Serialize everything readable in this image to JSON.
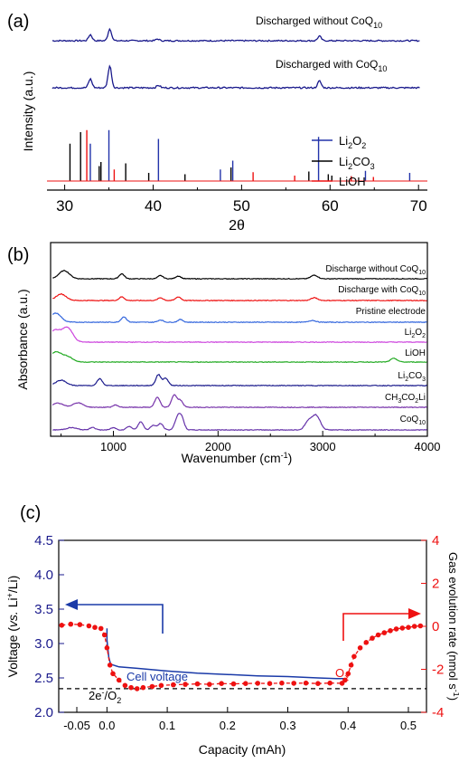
{
  "chart_data": [
    {
      "panel": "(a)",
      "type": "line",
      "xlabel": "2θ",
      "ylabel": "Intensity (a.u.)",
      "xlim": [
        28,
        71
      ],
      "xticks": [
        30,
        40,
        50,
        60,
        70
      ],
      "grid": false,
      "legend_position": "right",
      "series": [
        {
          "name": "Discharged without CoQ10",
          "label_main": "Discharged without CoQ",
          "label_sub": "10",
          "color": "#1a1a8c",
          "baseline": 0,
          "noise": 0.35,
          "peaks": [
            [
              32.9,
              3.2
            ],
            [
              35.1,
              6.2
            ],
            [
              40.5,
              0.9
            ],
            [
              58.8,
              2.4
            ]
          ]
        },
        {
          "name": "Discharged with CoQ10",
          "label_main": "Discharged with CoQ",
          "label_sub": "10",
          "color": "#1a1a8c",
          "baseline": 0,
          "noise": 0.4,
          "peaks": [
            [
              32.9,
              4.6
            ],
            [
              35.1,
              11.5
            ],
            [
              40.6,
              1.3
            ],
            [
              58.8,
              3.6
            ]
          ]
        }
      ],
      "references": [
        {
          "name": "Li2O2",
          "label_main": "Li",
          "label_sub": "2",
          "label_tail": "O",
          "label_sub2": "2",
          "color": "#2233aa",
          "lines": [
            [
              32.9,
              0.55
            ],
            [
              35.0,
              0.75
            ],
            [
              40.6,
              0.62
            ],
            [
              47.6,
              0.17
            ],
            [
              49.0,
              0.3
            ],
            [
              58.7,
              0.65
            ],
            [
              64.0,
              0.15
            ],
            [
              69.0,
              0.12
            ]
          ]
        },
        {
          "name": "Li2CO3",
          "label_main": "Li",
          "label_sub": "2",
          "label_tail": "CO",
          "label_sub2": "3",
          "color": "#000000",
          "lines": [
            [
              30.6,
              0.55
            ],
            [
              31.8,
              0.72
            ],
            [
              33.9,
              0.22
            ],
            [
              34.1,
              0.28
            ],
            [
              36.9,
              0.26
            ],
            [
              39.5,
              0.12
            ],
            [
              43.6,
              0.1
            ],
            [
              48.8,
              0.2
            ],
            [
              57.6,
              0.14
            ],
            [
              59.8,
              0.1
            ],
            [
              60.2,
              0.08
            ],
            [
              62.4,
              0.07
            ]
          ]
        },
        {
          "name": "LiOH",
          "label_main": "LiOH",
          "color": "#ee1111",
          "lines": [
            [
              32.5,
              0.75
            ],
            [
              35.6,
              0.17
            ],
            [
              51.3,
              0.13
            ],
            [
              56.0,
              0.08
            ],
            [
              62.4,
              0.07
            ],
            [
              64.9,
              0.06
            ]
          ]
        }
      ]
    },
    {
      "panel": "(b)",
      "type": "line",
      "xlabel": "Wavenumber (cm",
      "xlabel_sup": "-1",
      "xlabel_tail": ")",
      "ylabel": "Absorbance (a.u.)",
      "xlim": [
        400,
        4000
      ],
      "xticks": [
        1000,
        2000,
        3000,
        4000
      ],
      "grid": false,
      "series": [
        {
          "name": "Discharge without CoQ10",
          "label_main": "Discharge without CoQ",
          "label_sub": "10",
          "color": "#000000",
          "peaks": [
            [
              530,
              1.8
            ],
            [
              1080,
              1.1
            ],
            [
              1450,
              0.7
            ],
            [
              1620,
              0.6
            ],
            [
              2920,
              0.8
            ]
          ]
        },
        {
          "name": "Discharge with CoQ10",
          "label_main": "Discharge with CoQ",
          "label_sub": "10",
          "color": "#ee1111",
          "peaks": [
            [
              500,
              1.4
            ],
            [
              1080,
              0.8
            ],
            [
              1450,
              0.6
            ],
            [
              1620,
              0.8
            ],
            [
              2920,
              0.6
            ]
          ]
        },
        {
          "name": "Pristine electrode",
          "label_main": "Pristine electrode",
          "color": "#3366dd",
          "peaks": [
            [
              450,
              2.0
            ],
            [
              1100,
              1.2
            ],
            [
              1450,
              0.5
            ],
            [
              1640,
              0.6
            ],
            [
              2900,
              0.4
            ]
          ]
        },
        {
          "name": "Li2O2",
          "label_main": "Li",
          "label_sub": "2",
          "label_tail": "O",
          "label_sub2": "2",
          "color": "#cc44dd",
          "peaks": [
            [
              440,
              2.6
            ],
            [
              560,
              3.2
            ]
          ]
        },
        {
          "name": "LiOH",
          "label_main": "LiOH",
          "color": "#22aa22",
          "peaks": [
            [
              450,
              2.2
            ],
            [
              560,
              1.2
            ],
            [
              3680,
              0.8
            ]
          ]
        },
        {
          "name": "Li2CO3",
          "label_main": "Li",
          "label_sub": "2",
          "label_tail": "CO",
          "label_sub2": "3",
          "color": "#1a1a8c",
          "peaks": [
            [
              500,
              1.2
            ],
            [
              870,
              1.5
            ],
            [
              1430,
              2.4
            ],
            [
              1500,
              1.6
            ]
          ]
        },
        {
          "name": "CH3CO2Li",
          "label_main": "CH",
          "label_sub": "3",
          "label_tail": "CO",
          "label_sub2": "2",
          "label_tail2": "Li",
          "color": "#7733aa",
          "peaks": [
            [
              470,
              0.9
            ],
            [
              660,
              1.0
            ],
            [
              1020,
              0.5
            ],
            [
              1420,
              2.2
            ],
            [
              1580,
              2.7
            ],
            [
              1640,
              1.5
            ]
          ]
        },
        {
          "name": "CoQ10",
          "label_main": "CoQ",
          "label_sub": "10",
          "color": "#6633aa",
          "peaks": [
            [
              600,
              0.5
            ],
            [
              800,
              0.6
            ],
            [
              1000,
              0.5
            ],
            [
              1150,
              0.8
            ],
            [
              1260,
              1.8
            ],
            [
              1380,
              1.0
            ],
            [
              1450,
              1.4
            ],
            [
              1610,
              2.4
            ],
            [
              1650,
              2.7
            ],
            [
              2860,
              1.8
            ],
            [
              2920,
              2.3
            ],
            [
              2960,
              1.6
            ]
          ]
        }
      ]
    },
    {
      "panel": "(c)",
      "type": "line",
      "xlabel": "Capacity (mAh)",
      "xlim": [
        -0.08,
        0.53
      ],
      "xticks": [
        -0.05,
        0.0,
        0.1,
        0.2,
        0.3,
        0.4,
        0.5
      ],
      "xtick_labels": [
        "-0.05",
        "0.0",
        "0.1",
        "0.2",
        "0.3",
        "0.4",
        "0.5"
      ],
      "ylabel_left": "Voltage (vs. Li+/Li)",
      "ylabel_left_parts": [
        "Voltage (",
        "vs.",
        " Li",
        "+",
        "/Li)"
      ],
      "ylim_left": [
        2.0,
        4.5
      ],
      "yticks_left": [
        2.0,
        2.5,
        3.0,
        3.5,
        4.0,
        4.5
      ],
      "ytick_labels_left": [
        "2.0",
        "2.5",
        "3.0",
        "3.5",
        "4.0",
        "4.5"
      ],
      "ylabel_right": "Gas evolution rate (nmol s-1)",
      "ylabel_right_parts": [
        "Gas evolution rate (nmol  s",
        "-1",
        ")"
      ],
      "ylim_right": [
        -4,
        4
      ],
      "yticks_right": [
        -4,
        -2,
        0,
        2,
        4
      ],
      "left_axis_color": "#1a1a8c",
      "right_axis_color": "#ee1111",
      "grid": false,
      "series": [
        {
          "name": "Cell voltage",
          "axis": "left",
          "color": "#1a3aa8",
          "x": [
            0.0,
            0.0,
            0.003,
            0.006,
            0.02,
            0.05,
            0.1,
            0.15,
            0.2,
            0.25,
            0.3,
            0.35,
            0.38,
            0.395
          ],
          "y": [
            3.22,
            3.05,
            2.8,
            2.7,
            2.66,
            2.64,
            2.6,
            2.57,
            2.55,
            2.53,
            2.52,
            2.5,
            2.49,
            2.49
          ]
        },
        {
          "name": "O2",
          "axis": "right",
          "color": "#ee1111",
          "x": [
            -0.075,
            -0.06,
            -0.045,
            -0.03,
            -0.02,
            -0.01,
            -0.004,
            0.0,
            0.005,
            0.01,
            0.02,
            0.03,
            0.04,
            0.05,
            0.06,
            0.075,
            0.09,
            0.11,
            0.13,
            0.15,
            0.17,
            0.19,
            0.21,
            0.23,
            0.25,
            0.27,
            0.29,
            0.31,
            0.33,
            0.35,
            0.37,
            0.39,
            0.395,
            0.4,
            0.405,
            0.41,
            0.42,
            0.43,
            0.44,
            0.45,
            0.46,
            0.47,
            0.48,
            0.49,
            0.5,
            0.51,
            0.52
          ],
          "y": [
            0.05,
            0.1,
            0.08,
            0.02,
            -0.05,
            -0.1,
            -0.4,
            -1.0,
            -1.8,
            -2.2,
            -2.5,
            -2.75,
            -2.85,
            -2.9,
            -2.85,
            -2.8,
            -2.75,
            -2.72,
            -2.7,
            -2.68,
            -2.7,
            -2.66,
            -2.68,
            -2.66,
            -2.65,
            -2.66,
            -2.64,
            -2.65,
            -2.64,
            -2.66,
            -2.64,
            -2.65,
            -2.5,
            -2.2,
            -1.8,
            -1.4,
            -1.0,
            -0.75,
            -0.55,
            -0.4,
            -0.3,
            -0.2,
            -0.12,
            -0.08,
            -0.05,
            0.0,
            0.02
          ]
        },
        {
          "name": "2e-/O2",
          "axis": "right",
          "style": "dashed",
          "color": "#000000",
          "x": [
            -0.08,
            0.53
          ],
          "y": [
            -2.9,
            -2.9
          ]
        }
      ],
      "annotations": {
        "cell_voltage_label": "Cell voltage",
        "o2_label_main": "O",
        "o2_label_sub": "2",
        "ref_label_main": "2e",
        "ref_label_sup": "-",
        "ref_label_tail": "/O",
        "ref_label_sub": "2",
        "left_arrow": "points to left axis",
        "right_arrow": "points to right axis"
      }
    }
  ],
  "panel_labels": {
    "a": "(a)",
    "b": "(b)",
    "c": "(c)"
  }
}
